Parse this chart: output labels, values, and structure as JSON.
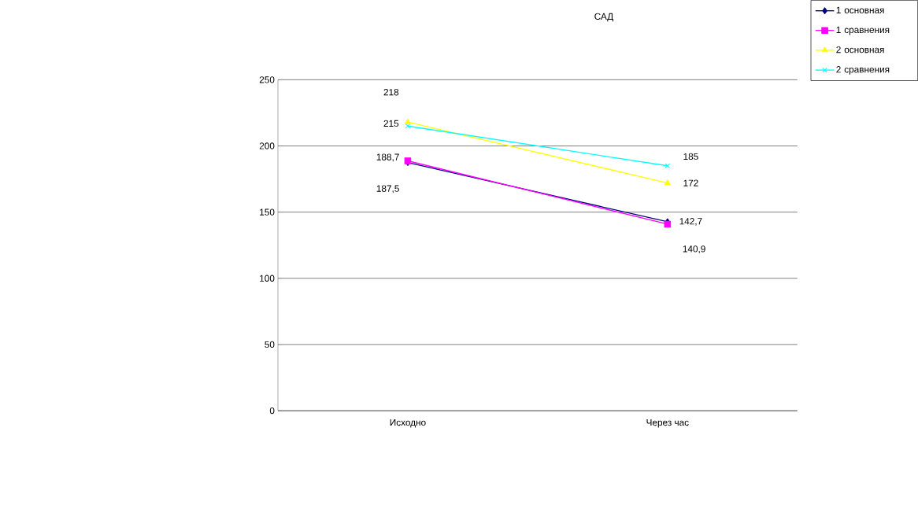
{
  "chart_data": {
    "type": "line",
    "title": "САД",
    "categories": [
      "Исходно",
      "Через час"
    ],
    "series": [
      {
        "name": "1 основная",
        "color": "#000080",
        "marker": "diamond",
        "values": [
          187.5,
          142.7
        ],
        "value_labels": [
          "187,5",
          "142,7"
        ]
      },
      {
        "name": "1 сравнения",
        "color": "#ff00ff",
        "marker": "square",
        "values": [
          188.7,
          140.9
        ],
        "value_labels": [
          "188,7",
          "140,9"
        ]
      },
      {
        "name": "2 основная",
        "color": "#ffff00",
        "marker": "triangle",
        "values": [
          218,
          172
        ],
        "value_labels": [
          "218",
          "172"
        ]
      },
      {
        "name": "2 сравнения",
        "color": "#00ffff",
        "marker": "cross",
        "values": [
          215,
          185
        ],
        "value_labels": [
          "215",
          "185"
        ]
      }
    ],
    "ylim": [
      0,
      250
    ],
    "yticks": [
      0,
      50,
      100,
      150,
      200,
      250
    ],
    "grid": "y",
    "legend": "right"
  }
}
